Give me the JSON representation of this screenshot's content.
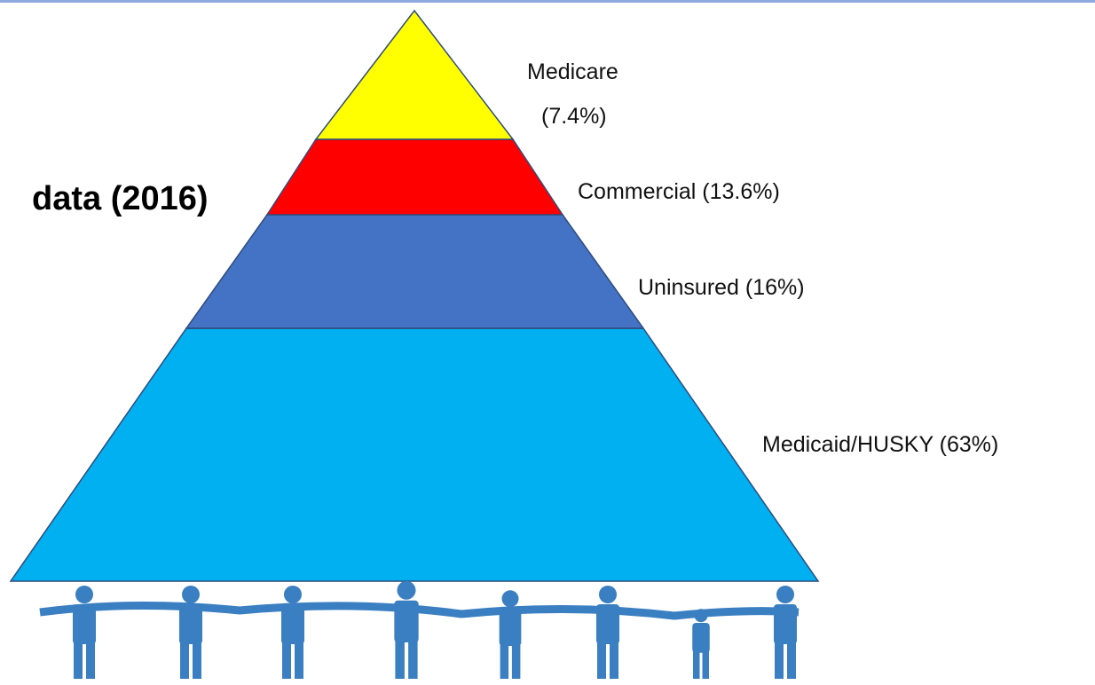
{
  "heading": "data (2016)",
  "tiers": [
    {
      "lines": [
        "Medicare",
        "(7.4%)"
      ]
    },
    {
      "lines": [
        "Commercial (13.6%)"
      ]
    },
    {
      "lines": [
        "Uninsured (16%)"
      ]
    },
    {
      "lines": [
        "Medicaid/HUSKY (63%)"
      ]
    }
  ]
}
